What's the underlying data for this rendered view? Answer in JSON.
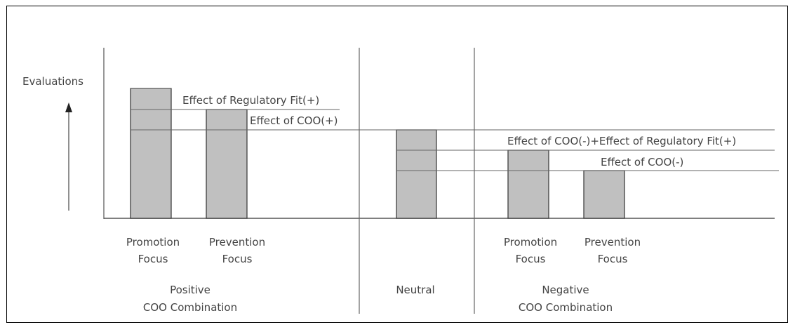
{
  "y_axis_label": "Evaluations",
  "groups": [
    {
      "name_lines": [
        "Positive",
        "COO Combination"
      ],
      "bars": [
        {
          "label_lines": [
            "Promotion",
            "Focus"
          ],
          "level": 3
        },
        {
          "label_lines": [
            "Prevention",
            "Focus"
          ],
          "level": 2
        }
      ]
    },
    {
      "name_lines": [
        "Neutral"
      ],
      "bars": [
        {
          "label_lines": [],
          "level": 0
        }
      ]
    },
    {
      "name_lines": [
        "Negative",
        "COO Combination"
      ],
      "bars": [
        {
          "label_lines": [
            "Promotion",
            "Focus"
          ],
          "level": -1
        },
        {
          "label_lines": [
            "Prevention",
            "Focus"
          ],
          "level": -2
        }
      ]
    }
  ],
  "annotations": [
    {
      "text": "Effect of Regulatory Fit(+)"
    },
    {
      "text": "Effect of COO(+)"
    },
    {
      "text": "Effect of COO(-)+Effect of Regulatory Fit(+)"
    },
    {
      "text": "Effect of COO(-)"
    }
  ],
  "colors": {
    "bar_fill": "#c0c0c0",
    "bar_stroke": "#333333",
    "line": "#555555",
    "text": "#444444"
  }
}
